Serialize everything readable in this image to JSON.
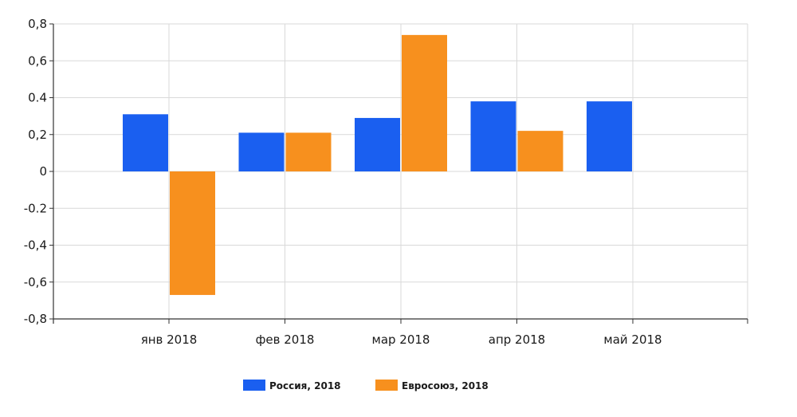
{
  "chart_data": {
    "type": "bar",
    "categories": [
      "янв 2018",
      "фев 2018",
      "мар 2018",
      "апр 2018",
      "май 2018"
    ],
    "series": [
      {
        "name": "Россия, 2018",
        "color": "#1a5ff0",
        "values": [
          0.31,
          0.21,
          0.29,
          0.38,
          0.38
        ]
      },
      {
        "name": "Евросоюз, 2018",
        "color": "#f7901e",
        "values": [
          -0.67,
          0.21,
          0.74,
          0.22,
          null
        ]
      }
    ],
    "y_ticks": [
      "0,8",
      "0,6",
      "0.4",
      "0,2",
      "0",
      "-0.2",
      "-0,4",
      "-0,6",
      "-0,8"
    ],
    "ylim": [
      -0.8,
      0.8
    ],
    "grid": true,
    "legend_position": "bottom"
  }
}
